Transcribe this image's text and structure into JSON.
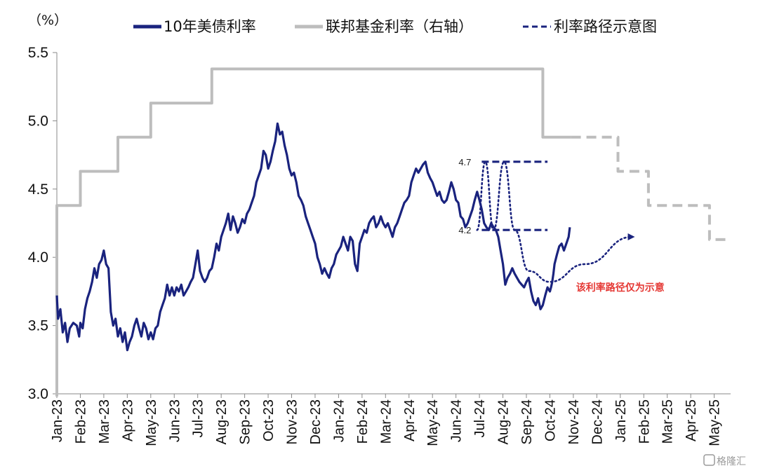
{
  "chart_data": {
    "type": "line",
    "unit_label": "（%）",
    "ylim": [
      3.0,
      5.5
    ],
    "yticks": [
      "3.0",
      "3.5",
      "4.0",
      "4.5",
      "5.0",
      "5.5"
    ],
    "x_tick_labels": [
      "Jan-23",
      "Feb-23",
      "Mar-23",
      "Apr-23",
      "May-23",
      "Jun-23",
      "Jul-23",
      "Aug-23",
      "Sep-23",
      "Oct-23",
      "Nov-23",
      "Dec-23",
      "Jan-24",
      "Feb-24",
      "Mar-24",
      "Apr-24",
      "May-24",
      "Jun-24",
      "Jul-24",
      "Aug-24",
      "Sep-24",
      "Oct-24",
      "Nov-24",
      "Dec-24",
      "Jan-25",
      "Feb-25",
      "Mar-25",
      "Apr-25",
      "May-25"
    ],
    "legend": [
      {
        "name": "10年美债利率",
        "style": "solid",
        "color": "#1a237e"
      },
      {
        "name": "联邦基金利率（右轴）",
        "style": "solid",
        "color": "#bdbdbd"
      },
      {
        "name": "利率路径示意图",
        "style": "dashed",
        "color": "#1a237e"
      }
    ],
    "series": [
      {
        "name": "10年美债利率",
        "color": "#1a237e",
        "points": [
          [
            0,
            3.72
          ],
          [
            0.05,
            3.55
          ],
          [
            0.15,
            3.62
          ],
          [
            0.25,
            3.45
          ],
          [
            0.35,
            3.52
          ],
          [
            0.45,
            3.38
          ],
          [
            0.55,
            3.48
          ],
          [
            0.7,
            3.52
          ],
          [
            0.85,
            3.5
          ],
          [
            0.95,
            3.42
          ],
          [
            1.0,
            3.52
          ],
          [
            1.1,
            3.48
          ],
          [
            1.2,
            3.62
          ],
          [
            1.3,
            3.7
          ],
          [
            1.4,
            3.75
          ],
          [
            1.5,
            3.82
          ],
          [
            1.6,
            3.92
          ],
          [
            1.7,
            3.85
          ],
          [
            1.8,
            3.95
          ],
          [
            1.9,
            3.98
          ],
          [
            2.0,
            4.05
          ],
          [
            2.1,
            3.95
          ],
          [
            2.2,
            3.92
          ],
          [
            2.3,
            3.6
          ],
          [
            2.4,
            3.5
          ],
          [
            2.5,
            3.55
          ],
          [
            2.6,
            3.42
          ],
          [
            2.7,
            3.48
          ],
          [
            2.8,
            3.38
          ],
          [
            2.9,
            3.45
          ],
          [
            3.0,
            3.32
          ],
          [
            3.1,
            3.38
          ],
          [
            3.2,
            3.42
          ],
          [
            3.3,
            3.5
          ],
          [
            3.4,
            3.55
          ],
          [
            3.5,
            3.48
          ],
          [
            3.6,
            3.42
          ],
          [
            3.7,
            3.52
          ],
          [
            3.8,
            3.48
          ],
          [
            3.9,
            3.4
          ],
          [
            4.0,
            3.45
          ],
          [
            4.1,
            3.4
          ],
          [
            4.2,
            3.48
          ],
          [
            4.3,
            3.5
          ],
          [
            4.4,
            3.6
          ],
          [
            4.5,
            3.65
          ],
          [
            4.6,
            3.7
          ],
          [
            4.7,
            3.8
          ],
          [
            4.8,
            3.72
          ],
          [
            4.9,
            3.78
          ],
          [
            5.0,
            3.72
          ],
          [
            5.1,
            3.78
          ],
          [
            5.2,
            3.75
          ],
          [
            5.3,
            3.8
          ],
          [
            5.4,
            3.72
          ],
          [
            5.5,
            3.75
          ],
          [
            5.6,
            3.78
          ],
          [
            5.7,
            3.82
          ],
          [
            5.8,
            3.85
          ],
          [
            5.9,
            3.95
          ],
          [
            6.0,
            4.05
          ],
          [
            6.1,
            3.9
          ],
          [
            6.2,
            3.85
          ],
          [
            6.3,
            3.82
          ],
          [
            6.4,
            3.85
          ],
          [
            6.5,
            3.9
          ],
          [
            6.6,
            3.92
          ],
          [
            6.7,
            4.0
          ],
          [
            6.8,
            4.1
          ],
          [
            6.9,
            4.05
          ],
          [
            7.0,
            4.15
          ],
          [
            7.1,
            4.2
          ],
          [
            7.2,
            4.25
          ],
          [
            7.3,
            4.32
          ],
          [
            7.4,
            4.2
          ],
          [
            7.5,
            4.3
          ],
          [
            7.6,
            4.25
          ],
          [
            7.7,
            4.18
          ],
          [
            7.8,
            4.22
          ],
          [
            7.9,
            4.28
          ],
          [
            8.0,
            4.25
          ],
          [
            8.1,
            4.32
          ],
          [
            8.2,
            4.35
          ],
          [
            8.3,
            4.4
          ],
          [
            8.4,
            4.45
          ],
          [
            8.5,
            4.55
          ],
          [
            8.6,
            4.6
          ],
          [
            8.7,
            4.65
          ],
          [
            8.8,
            4.78
          ],
          [
            8.9,
            4.75
          ],
          [
            9.0,
            4.65
          ],
          [
            9.1,
            4.7
          ],
          [
            9.2,
            4.78
          ],
          [
            9.3,
            4.85
          ],
          [
            9.4,
            4.98
          ],
          [
            9.5,
            4.9
          ],
          [
            9.6,
            4.92
          ],
          [
            9.7,
            4.82
          ],
          [
            9.8,
            4.75
          ],
          [
            9.9,
            4.65
          ],
          [
            10.0,
            4.6
          ],
          [
            10.1,
            4.62
          ],
          [
            10.2,
            4.55
          ],
          [
            10.3,
            4.45
          ],
          [
            10.4,
            4.42
          ],
          [
            10.5,
            4.38
          ],
          [
            10.6,
            4.3
          ],
          [
            10.7,
            4.25
          ],
          [
            10.8,
            4.2
          ],
          [
            10.9,
            4.15
          ],
          [
            11.0,
            4.1
          ],
          [
            11.1,
            4.0
          ],
          [
            11.2,
            3.95
          ],
          [
            11.3,
            3.88
          ],
          [
            11.4,
            3.92
          ],
          [
            11.5,
            3.88
          ],
          [
            11.6,
            3.85
          ],
          [
            11.7,
            3.92
          ],
          [
            11.8,
            3.95
          ],
          [
            11.9,
            4.02
          ],
          [
            12.0,
            4.05
          ],
          [
            12.1,
            4.08
          ],
          [
            12.2,
            4.15
          ],
          [
            12.3,
            4.1
          ],
          [
            12.4,
            4.05
          ],
          [
            12.5,
            4.15
          ],
          [
            12.6,
            4.12
          ],
          [
            12.7,
            3.95
          ],
          [
            12.8,
            3.9
          ],
          [
            12.9,
            4.1
          ],
          [
            13.0,
            4.15
          ],
          [
            13.1,
            4.2
          ],
          [
            13.2,
            4.18
          ],
          [
            13.3,
            4.25
          ],
          [
            13.4,
            4.28
          ],
          [
            13.5,
            4.3
          ],
          [
            13.6,
            4.22
          ],
          [
            13.7,
            4.25
          ],
          [
            13.8,
            4.3
          ],
          [
            13.9,
            4.25
          ],
          [
            14.0,
            4.22
          ],
          [
            14.1,
            4.25
          ],
          [
            14.2,
            4.2
          ],
          [
            14.3,
            4.15
          ],
          [
            14.4,
            4.22
          ],
          [
            14.5,
            4.25
          ],
          [
            14.6,
            4.3
          ],
          [
            14.7,
            4.35
          ],
          [
            14.8,
            4.4
          ],
          [
            14.9,
            4.42
          ],
          [
            15.0,
            4.45
          ],
          [
            15.1,
            4.55
          ],
          [
            15.2,
            4.6
          ],
          [
            15.3,
            4.65
          ],
          [
            15.4,
            4.62
          ],
          [
            15.5,
            4.65
          ],
          [
            15.6,
            4.68
          ],
          [
            15.7,
            4.7
          ],
          [
            15.8,
            4.62
          ],
          [
            15.9,
            4.58
          ],
          [
            16.0,
            4.55
          ],
          [
            16.1,
            4.5
          ],
          [
            16.2,
            4.45
          ],
          [
            16.3,
            4.48
          ],
          [
            16.4,
            4.42
          ],
          [
            16.5,
            4.4
          ],
          [
            16.6,
            4.42
          ],
          [
            16.7,
            4.48
          ],
          [
            16.8,
            4.55
          ],
          [
            16.9,
            4.5
          ],
          [
            17.0,
            4.42
          ],
          [
            17.1,
            4.4
          ],
          [
            17.2,
            4.3
          ],
          [
            17.3,
            4.28
          ],
          [
            17.4,
            4.22
          ],
          [
            17.5,
            4.25
          ],
          [
            17.6,
            4.3
          ],
          [
            17.7,
            4.35
          ],
          [
            17.8,
            4.42
          ],
          [
            17.9,
            4.48
          ],
          [
            18.0,
            4.42
          ],
          [
            18.1,
            4.35
          ],
          [
            18.2,
            4.25
          ],
          [
            18.3,
            4.22
          ],
          [
            18.4,
            4.2
          ],
          [
            18.5,
            4.25
          ],
          [
            18.6,
            4.22
          ],
          [
            18.7,
            4.2
          ],
          [
            18.8,
            4.15
          ],
          [
            18.9,
            4.05
          ],
          [
            19.0,
            3.95
          ],
          [
            19.1,
            3.8
          ],
          [
            19.2,
            3.85
          ],
          [
            19.3,
            3.88
          ],
          [
            19.4,
            3.92
          ],
          [
            19.5,
            3.88
          ],
          [
            19.6,
            3.85
          ],
          [
            19.7,
            3.82
          ],
          [
            19.8,
            3.8
          ],
          [
            19.9,
            3.78
          ],
          [
            20.0,
            3.82
          ],
          [
            20.1,
            3.85
          ],
          [
            20.2,
            3.75
          ],
          [
            20.3,
            3.68
          ],
          [
            20.4,
            3.65
          ],
          [
            20.5,
            3.7
          ],
          [
            20.6,
            3.62
          ],
          [
            20.7,
            3.65
          ],
          [
            20.8,
            3.72
          ],
          [
            20.9,
            3.78
          ],
          [
            21.0,
            3.75
          ],
          [
            21.05,
            3.78
          ],
          [
            21.1,
            3.82
          ],
          [
            21.15,
            3.88
          ],
          [
            21.2,
            3.95
          ],
          [
            21.3,
            4.02
          ],
          [
            21.4,
            4.08
          ],
          [
            21.5,
            4.1
          ],
          [
            21.6,
            4.05
          ],
          [
            21.7,
            4.1
          ],
          [
            21.8,
            4.15
          ],
          [
            21.85,
            4.22
          ]
        ]
      },
      {
        "name": "联邦基金利率（右轴）",
        "color": "#bdbdbd",
        "points": [
          [
            0,
            2.98
          ],
          [
            0,
            4.38
          ],
          [
            1,
            4.38
          ],
          [
            1,
            4.63
          ],
          [
            2.6,
            4.63
          ],
          [
            2.6,
            4.88
          ],
          [
            4,
            4.88
          ],
          [
            4,
            5.13
          ],
          [
            6.6,
            5.13
          ],
          [
            6.6,
            5.38
          ],
          [
            20.7,
            5.38
          ],
          [
            20.7,
            4.88
          ],
          [
            21.9,
            4.88
          ]
        ]
      },
      {
        "name": "联邦基金利率路径示意",
        "color": "#bdbdbd",
        "dashed": true,
        "points": [
          [
            21.9,
            4.88
          ],
          [
            23.9,
            4.88
          ],
          [
            23.9,
            4.63
          ],
          [
            25.2,
            4.63
          ],
          [
            25.2,
            4.38
          ],
          [
            27.8,
            4.38
          ],
          [
            27.8,
            4.13
          ],
          [
            28.5,
            4.13
          ]
        ]
      },
      {
        "name": "利率路径示意图",
        "color": "#1a237e",
        "dashed": true,
        "points": [
          [
            18.1,
            4.7
          ],
          [
            20.9,
            4.7
          ]
        ]
      },
      {
        "name": "利率路径示意图",
        "color": "#1a237e",
        "dashed": true,
        "points": [
          [
            18.1,
            4.2
          ],
          [
            20.9,
            4.2
          ]
        ]
      }
    ],
    "dotted_paths": [
      {
        "color": "#1a237e",
        "points": [
          [
            17.9,
            4.2
          ],
          [
            18.25,
            4.7
          ],
          [
            18.6,
            4.2
          ]
        ]
      },
      {
        "color": "#1a237e",
        "points": [
          [
            18.6,
            4.2
          ],
          [
            19.05,
            4.7
          ],
          [
            19.5,
            4.2
          ],
          [
            20.1,
            3.9
          ],
          [
            21.0,
            3.82
          ],
          [
            22.5,
            3.95
          ],
          [
            24.5,
            4.15
          ]
        ],
        "arrow": true
      }
    ],
    "annotations": [
      {
        "text": "4.7",
        "at": [
          17.65,
          4.7
        ]
      },
      {
        "text": "4.2",
        "at": [
          17.65,
          4.2
        ]
      }
    ],
    "note": {
      "text": "该利率路径仅为示意",
      "color": "#e53935",
      "at": [
        24.0,
        3.78
      ]
    }
  },
  "watermark": "格隆汇"
}
